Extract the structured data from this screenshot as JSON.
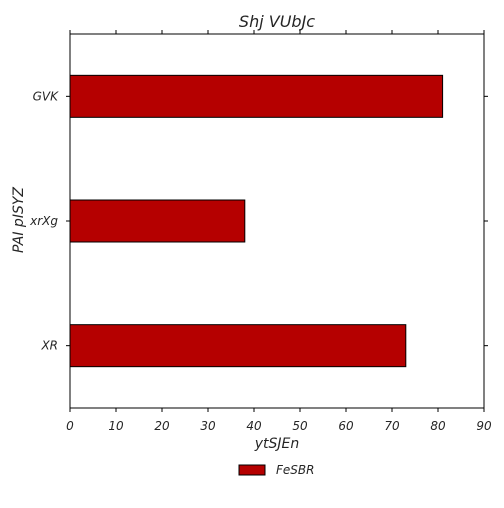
{
  "chart_data": {
    "type": "bar",
    "orientation": "horizontal",
    "title": "Shj VUbJc",
    "xlabel": "ytSJEn",
    "ylabel": "PAI pISYZ",
    "categories": [
      "GVK",
      "xrXg",
      "XR"
    ],
    "series": [
      {
        "name": "FeSBR",
        "values": [
          81,
          38,
          73
        ]
      }
    ],
    "xlim": [
      0,
      90
    ],
    "xticks": [
      "0",
      "10",
      "20",
      "30",
      "40",
      "50",
      "60",
      "70",
      "80",
      "90"
    ],
    "grid": false,
    "legend_position": "bottom-center",
    "colors": {
      "bar": "#b50000",
      "bar_edge": "#000000",
      "axis": "#000000",
      "text": "#262626"
    }
  }
}
